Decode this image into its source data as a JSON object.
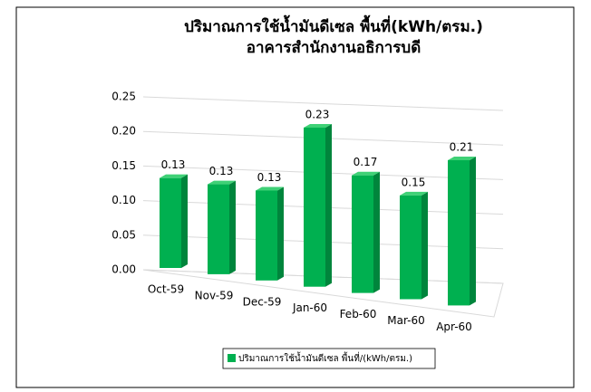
{
  "chart_data": {
    "type": "bar3d",
    "title": "ปริมาณการใช้น้ำมันดีเซล พื้นที่(kWh/ตรม.)",
    "subtitle": "อาคารสำนักงานอธิการบดี",
    "categories": [
      "Oct-59",
      "Nov-59",
      "Dec-59",
      "Jan-60",
      "Feb-60",
      "Mar-60",
      "Apr-60"
    ],
    "series": [
      {
        "name": "ปริมาณการใช้น้ำมันดีเซล พื้นที่/(kWh/ตรม.)",
        "color": "#00b050",
        "values": [
          0.13,
          0.13,
          0.13,
          0.23,
          0.17,
          0.15,
          0.21
        ]
      }
    ],
    "ylim": [
      0,
      0.25
    ],
    "yticks": [
      {
        "value": 0,
        "label": "0.00"
      },
      0.05,
      {
        "value": 0.1,
        "label": "0.10"
      },
      0.15,
      {
        "value": 0.2,
        "label": "0.20"
      },
      0.25
    ],
    "grid": true,
    "legend": "bottom"
  }
}
